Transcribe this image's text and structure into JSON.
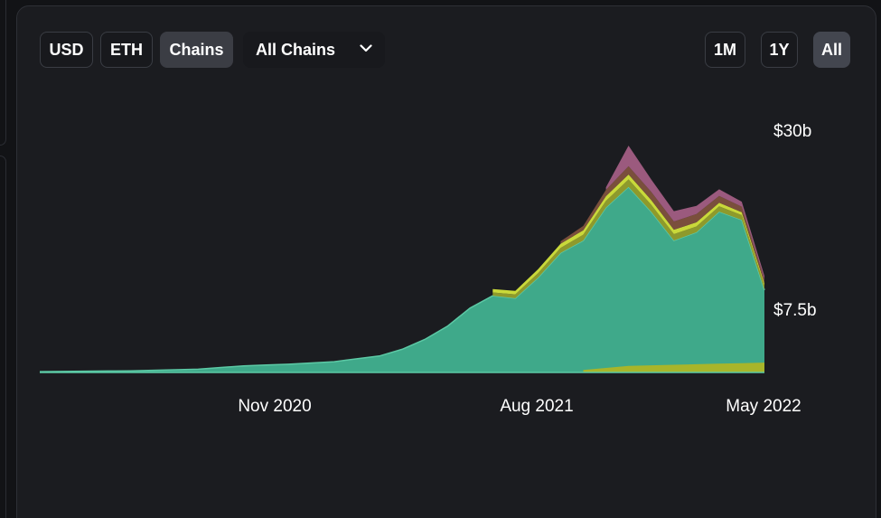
{
  "toolbar": {
    "currency_options": [
      "USD",
      "ETH",
      "Chains"
    ],
    "active_currency": "Chains",
    "chain_select": {
      "value": "All Chains"
    },
    "range_options": [
      "1M",
      "1Y",
      "All"
    ],
    "active_range": "All"
  },
  "colors": {
    "main_area": "#3fa98a",
    "main_area_edge": "#5cc9a5",
    "band_olive": "#8e9a2c",
    "band_yellow": "#c9d93a",
    "band_brown": "#7a4f3c",
    "band_pink": "#9b5a7e",
    "bottom_band": "#a8b52a",
    "text": "#ffffff"
  },
  "chart_data": {
    "type": "area",
    "stacked": true,
    "title": "",
    "xlabel": "",
    "ylabel": "",
    "x_tick_labels": [
      "Nov 2020",
      "Aug 2021",
      "May 2022"
    ],
    "y_tick_labels": [
      "$30b",
      "$7.5b"
    ],
    "y_ticks": [
      30,
      7.5
    ],
    "ylim": [
      0,
      32
    ],
    "x_range": [
      "2019-09",
      "2022-05"
    ],
    "grid": false,
    "legend": "none",
    "series": [
      {
        "color": "#3fa98a",
        "x": [
          "2019-09",
          "2020-01",
          "2020-04",
          "2020-06",
          "2020-08",
          "2020-10",
          "2020-12",
          "2021-01",
          "2021-02",
          "2021-03",
          "2021-04",
          "2021-05",
          "2021-06",
          "2021-07",
          "2021-08",
          "2021-09",
          "2021-10",
          "2021-11",
          "2021-12",
          "2022-01",
          "2022-02",
          "2022-03",
          "2022-04",
          "2022-05"
        ],
        "values": [
          0.1,
          0.2,
          0.4,
          0.8,
          1.0,
          1.3,
          2.0,
          2.8,
          4.0,
          5.6,
          7.8,
          9.3,
          9.0,
          11.5,
          14.5,
          16.0,
          20.0,
          22.5,
          19.5,
          16.0,
          17.0,
          19.5,
          18.5,
          10.0
        ]
      },
      {
        "color": "#8e9a2c",
        "x": [
          "2021-05",
          "2021-08",
          "2021-11",
          "2022-02",
          "2022-05"
        ],
        "values": [
          0.4,
          0.6,
          0.9,
          0.7,
          0.5
        ]
      },
      {
        "color": "#c9d93a",
        "x": [
          "2021-05",
          "2021-08",
          "2021-11",
          "2022-02",
          "2022-05"
        ],
        "values": [
          0.4,
          0.5,
          0.6,
          0.5,
          0.3
        ]
      },
      {
        "color": "#7a4f3c",
        "x": [
          "2021-08",
          "2021-11",
          "2022-02",
          "2022-05"
        ],
        "values": [
          0.3,
          1.0,
          1.0,
          0.5
        ]
      },
      {
        "color": "#9b5a7e",
        "x": [
          "2021-10",
          "2021-11",
          "2021-12",
          "2022-02",
          "2022-05"
        ],
        "values": [
          0.3,
          2.5,
          1.5,
          1.0,
          0.4
        ]
      }
    ],
    "bottom_band": {
      "color": "#a8b52a",
      "x": [
        "2021-09",
        "2021-11",
        "2022-02",
        "2022-05"
      ],
      "values": [
        0.3,
        0.8,
        1.0,
        1.2
      ]
    }
  }
}
